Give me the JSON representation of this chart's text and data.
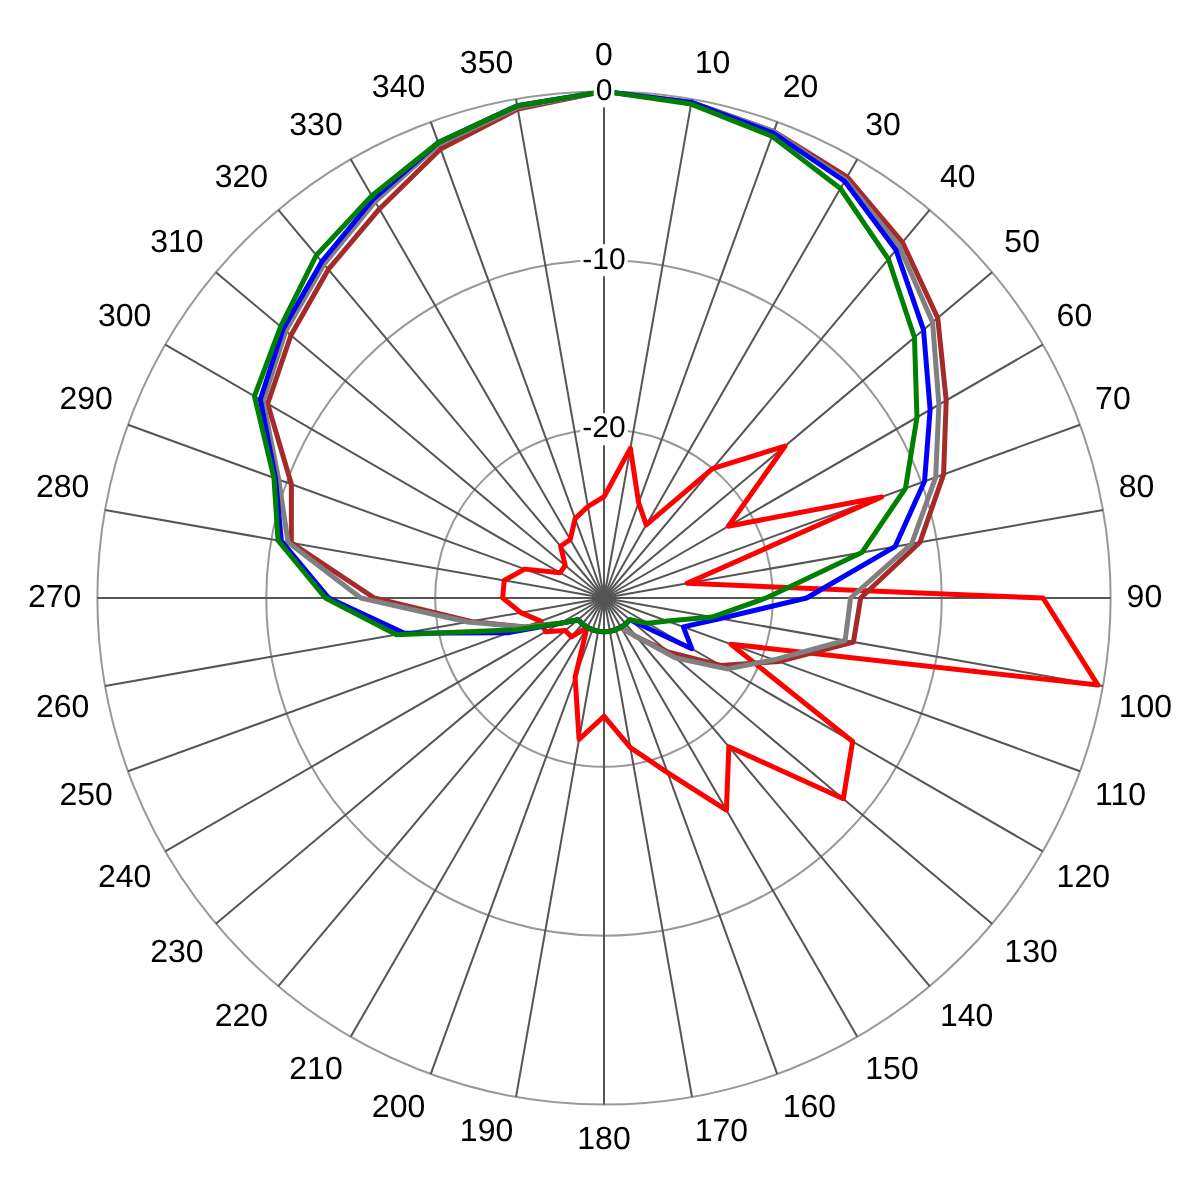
{
  "chart_data": {
    "type": "radar",
    "categories": [
      "0",
      "10",
      "20",
      "30",
      "40",
      "50",
      "60",
      "70",
      "80",
      "90",
      "100",
      "110",
      "120",
      "130",
      "140",
      "150",
      "160",
      "170",
      "180",
      "190",
      "200",
      "210",
      "220",
      "230",
      "240",
      "250",
      "260",
      "270",
      "280",
      "290",
      "300",
      "310",
      "320",
      "330",
      "340",
      "350"
    ],
    "ylim": [
      -30,
      0
    ],
    "yticks": [
      {
        "value": -20,
        "label": "-20"
      },
      {
        "value": -10,
        "label": "-10"
      },
      {
        "value": 0,
        "label": "0"
      }
    ],
    "grid": true,
    "legend": false,
    "marker": "none",
    "series": [
      {
        "color": "#008000",
        "values": [
          0,
          -0.3,
          -0.9,
          -2,
          -3.8,
          -6,
          -8.6,
          -11,
          -14.5,
          -20.4,
          -23.5,
          -26,
          -27,
          -28,
          -28,
          -28,
          -28,
          -28,
          -28,
          -28,
          -28,
          -28,
          -28,
          -28,
          -27,
          -24.5,
          -17.5,
          -13.5,
          -10.4,
          -9.2,
          -6.1,
          -5,
          -3.5,
          -2.5,
          -1.3,
          -0.4
        ]
      },
      {
        "color": "#0000ff",
        "values": [
          0,
          -0.2,
          -0.7,
          -1.5,
          -3.1,
          -5.3,
          -7.7,
          -9.8,
          -12.5,
          -18,
          -23,
          -25,
          -24,
          -28,
          -28,
          -28,
          -28,
          -28,
          -28,
          -28,
          -28,
          -28,
          -28,
          -28,
          -27,
          -24,
          -18,
          -13.7,
          -10.6,
          -9.3,
          -6.5,
          -5.2,
          -4,
          -2.7,
          -1.3,
          -0.4
        ]
      },
      {
        "color": "#808080",
        "values": [
          0,
          -0.2,
          -0.6,
          -1.4,
          -2.8,
          -4.6,
          -7.1,
          -9.1,
          -11.5,
          -15.4,
          -15.5,
          -19.3,
          -21.6,
          -24.5,
          -27,
          -28,
          -28,
          -28,
          -28,
          -28,
          -28,
          -28,
          -28,
          -28,
          -27,
          -25,
          -21.8,
          -15.6,
          -11,
          -9.5,
          -6.7,
          -5.4,
          -4.2,
          -2.9,
          -1.4,
          -0.5
        ]
      },
      {
        "color": "#a52a2a",
        "values": [
          0,
          -0.2,
          -0.6,
          -1.2,
          -2.5,
          -4.2,
          -6.6,
          -8.6,
          -11,
          -14.8,
          -15,
          -19,
          -22,
          -25,
          -27,
          -28,
          -28,
          -28,
          -28,
          -28,
          -28,
          -28,
          -28,
          -28,
          -27,
          -25,
          -22,
          -16.4,
          -11.2,
          -10.3,
          -7,
          -5.8,
          -4.6,
          -3.4,
          -1.7,
          -0.6
        ]
      },
      {
        "color": "#ff0000",
        "values": [
          -24,
          -21,
          -24,
          -25,
          -20,
          -16,
          -21.5,
          -12.5,
          -25,
          -4,
          -0.3,
          -22,
          -13,
          -11.5,
          -18.5,
          -15.5,
          -19,
          -21,
          -23,
          -21.5,
          -25,
          -28,
          -27,
          -27,
          -26,
          -26,
          -25,
          -24,
          -24,
          -25,
          -27,
          -27,
          -26,
          -26,
          -25,
          -24.5
        ]
      }
    ]
  }
}
